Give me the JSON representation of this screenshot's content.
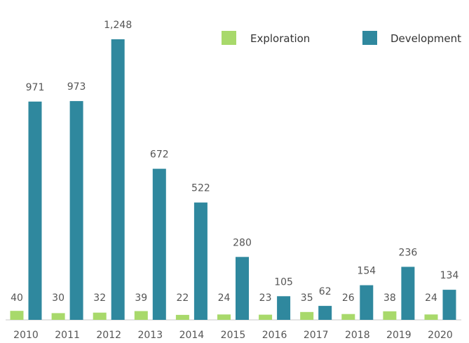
{
  "chart_data": {
    "type": "bar",
    "title": "",
    "xlabel": "",
    "ylabel": "",
    "categories": [
      "2010",
      "2011",
      "2012",
      "2013",
      "2014",
      "2015",
      "2016",
      "2017",
      "2018",
      "2019",
      "2020"
    ],
    "series": [
      {
        "name": "Exploration",
        "color": "#a8d96b",
        "values": [
          40,
          30,
          32,
          39,
          22,
          24,
          23,
          35,
          26,
          38,
          24
        ],
        "labels": [
          "40",
          "30",
          "32",
          "39",
          "22",
          "24",
          "23",
          "35",
          "26",
          "38",
          "24"
        ]
      },
      {
        "name": "Development",
        "color": "#2f889e",
        "values": [
          971,
          973,
          1248,
          672,
          522,
          280,
          105,
          62,
          154,
          236,
          134
        ],
        "labels": [
          "971",
          "973",
          "1,248",
          "672",
          "522",
          "280",
          "105",
          "62",
          "154",
          "236",
          "134"
        ]
      }
    ],
    "ylim": [
      0,
      1300
    ],
    "grid": false,
    "legend_position": "top-right",
    "data_labels": true
  }
}
